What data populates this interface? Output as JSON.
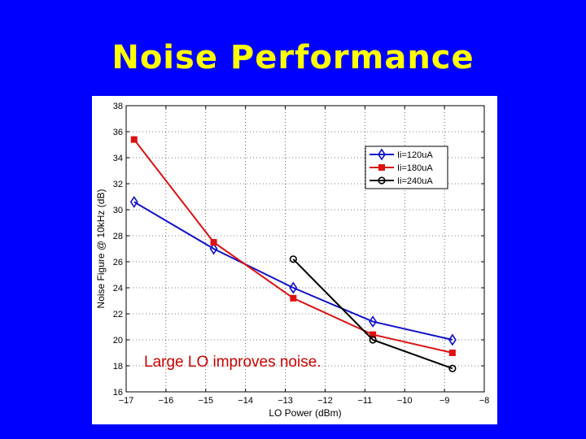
{
  "slide": {
    "title": "Noise Performance"
  },
  "chart_data": {
    "type": "line",
    "xlabel": "LO Power (dBm)",
    "ylabel": "Noise Figure @ 10kHz (dB)",
    "xlim": [
      -17,
      -8
    ],
    "ylim": [
      16,
      38
    ],
    "xticks": [
      -17,
      -16,
      -15,
      -14,
      -13,
      -12,
      -11,
      -10,
      -9,
      -8
    ],
    "yticks": [
      16,
      18,
      20,
      22,
      24,
      26,
      28,
      30,
      32,
      34,
      36,
      38
    ],
    "grid": true,
    "legend_position": "top-right",
    "annotation": "Large LO improves noise.",
    "series": [
      {
        "name": "Ii=120uA",
        "color": "#1010c8",
        "marker": "diamond",
        "x": [
          -16.8,
          -14.8,
          -12.8,
          -10.8,
          -8.8
        ],
        "y": [
          30.6,
          27.0,
          24.0,
          21.4,
          20.0
        ]
      },
      {
        "name": "Ii=180uA",
        "color": "#dd1111",
        "marker": "square",
        "x": [
          -16.8,
          -14.8,
          -12.8,
          -10.8,
          -8.8
        ],
        "y": [
          35.4,
          27.5,
          23.2,
          20.4,
          19.0
        ]
      },
      {
        "name": "Ii=240uA",
        "color": "#000000",
        "marker": "circle",
        "x": [
          -12.8,
          -10.8,
          -8.8
        ],
        "y": [
          26.2,
          20.0,
          17.8
        ]
      }
    ]
  }
}
